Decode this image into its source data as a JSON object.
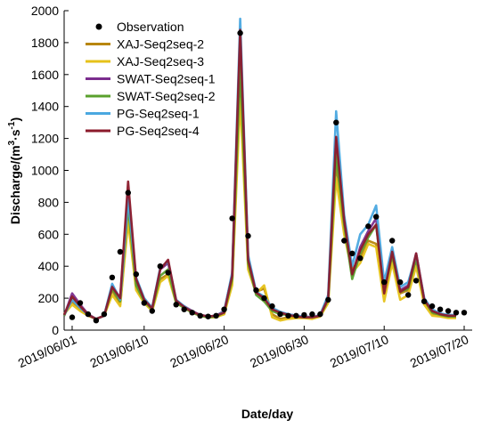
{
  "chart_data": {
    "type": "line",
    "xlabel": "Date/day",
    "ylabel_main": "Discharge/(m",
    "ylabel_sup1": "3",
    "ylabel_mid": "·s",
    "ylabel_sup2": "-1",
    "ylabel_end": ")",
    "xlim": [
      "2019/05/31",
      "2019/07/21"
    ],
    "ylim": [
      0,
      2000
    ],
    "y_ticks": [
      0,
      200,
      400,
      600,
      800,
      1000,
      1200,
      1400,
      1600,
      1800,
      2000
    ],
    "x_ticks": [
      "2019/06/01",
      "2019/06/10",
      "2019/06/20",
      "2019/06/30",
      "2019/07/10",
      "2019/07/20"
    ],
    "legend_position": "top-left",
    "grid": false,
    "observation": {
      "name": "Observation",
      "color": "#000000",
      "x": [
        "2019/06/01",
        "2019/06/02",
        "2019/06/03",
        "2019/06/04",
        "2019/06/05",
        "2019/06/06",
        "2019/06/07",
        "2019/06/08",
        "2019/06/09",
        "2019/06/10",
        "2019/06/11",
        "2019/06/12",
        "2019/06/13",
        "2019/06/14",
        "2019/06/15",
        "2019/06/16",
        "2019/06/17",
        "2019/06/18",
        "2019/06/19",
        "2019/06/20",
        "2019/06/21",
        "2019/06/22",
        "2019/06/23",
        "2019/06/24",
        "2019/06/25",
        "2019/06/26",
        "2019/06/27",
        "2019/06/28",
        "2019/06/29",
        "2019/06/30",
        "2019/07/01",
        "2019/07/02",
        "2019/07/03",
        "2019/07/04",
        "2019/07/05",
        "2019/07/06",
        "2019/07/07",
        "2019/07/08",
        "2019/07/09",
        "2019/07/10",
        "2019/07/11",
        "2019/07/12",
        "2019/07/13",
        "2019/07/14",
        "2019/07/15",
        "2019/07/16",
        "2019/07/17",
        "2019/07/18",
        "2019/07/19",
        "2019/07/20"
      ],
      "y": [
        80,
        170,
        100,
        60,
        100,
        330,
        490,
        860,
        350,
        170,
        120,
        400,
        360,
        160,
        130,
        110,
        90,
        85,
        90,
        130,
        700,
        1860,
        590,
        250,
        200,
        150,
        100,
        90,
        90,
        95,
        100,
        100,
        190,
        1300,
        560,
        480,
        450,
        650,
        710,
        300,
        560,
        300,
        220,
        310,
        180,
        150,
        130,
        120,
        110,
        110
      ]
    },
    "series": [
      {
        "name": "XAJ-Seq2seq-2",
        "color": "#b8860b",
        "values": [
          100,
          180,
          130,
          90,
          70,
          90,
          250,
          160,
          700,
          260,
          180,
          130,
          320,
          350,
          180,
          140,
          110,
          90,
          80,
          85,
          100,
          300,
          1550,
          400,
          240,
          260,
          100,
          70,
          80,
          80,
          80,
          75,
          90,
          180,
          1050,
          630,
          380,
          450,
          560,
          540,
          220,
          450,
          230,
          250,
          440,
          180,
          100,
          90,
          80,
          80
        ]
      },
      {
        "name": "XAJ-Seq2seq-3",
        "color": "#e6c21a",
        "values": [
          100,
          160,
          120,
          90,
          70,
          90,
          220,
          150,
          680,
          250,
          170,
          120,
          300,
          340,
          170,
          140,
          110,
          90,
          80,
          80,
          100,
          280,
          1450,
          380,
          230,
          280,
          80,
          60,
          70,
          75,
          75,
          70,
          85,
          170,
          950,
          600,
          360,
          420,
          540,
          520,
          180,
          420,
          190,
          220,
          400,
          160,
          90,
          85,
          75,
          75
        ]
      },
      {
        "name": "SWAT-Seq2seq-1",
        "color": "#7b2d8e",
        "values": [
          90,
          230,
          160,
          100,
          70,
          90,
          280,
          200,
          850,
          300,
          190,
          140,
          380,
          420,
          180,
          150,
          120,
          95,
          85,
          90,
          120,
          350,
          1850,
          450,
          230,
          200,
          130,
          110,
          100,
          90,
          85,
          80,
          95,
          210,
          1200,
          700,
          340,
          520,
          620,
          700,
          250,
          500,
          250,
          280,
          480,
          200,
          120,
          100,
          90,
          90
        ]
      },
      {
        "name": "SWAT-Seq2seq-2",
        "color": "#5aa02c",
        "values": [
          90,
          200,
          140,
          95,
          70,
          90,
          260,
          180,
          780,
          280,
          180,
          130,
          340,
          380,
          170,
          140,
          110,
          90,
          80,
          85,
          110,
          320,
          1650,
          420,
          220,
          180,
          120,
          100,
          95,
          85,
          80,
          80,
          90,
          190,
          1100,
          660,
          320,
          480,
          580,
          660,
          240,
          470,
          240,
          260,
          450,
          190,
          110,
          95,
          85,
          85
        ]
      },
      {
        "name": "PG-Seq2seq-1",
        "color": "#4aa8e0",
        "values": [
          95,
          190,
          140,
          95,
          70,
          90,
          290,
          190,
          820,
          330,
          200,
          140,
          390,
          430,
          190,
          150,
          115,
          95,
          85,
          90,
          115,
          360,
          1950,
          470,
          240,
          210,
          140,
          115,
          100,
          90,
          85,
          80,
          95,
          220,
          1370,
          720,
          400,
          600,
          660,
          780,
          300,
          520,
          270,
          300,
          470,
          200,
          130,
          105,
          95,
          95
        ]
      },
      {
        "name": "PG-Seq2seq-4",
        "color": "#8b1a2b",
        "values": [
          95,
          210,
          150,
          95,
          70,
          90,
          270,
          200,
          930,
          320,
          190,
          135,
          380,
          440,
          185,
          145,
          115,
          95,
          85,
          90,
          110,
          340,
          1880,
          440,
          235,
          200,
          130,
          110,
          95,
          85,
          80,
          80,
          90,
          200,
          1210,
          690,
          350,
          500,
          600,
          660,
          230,
          490,
          240,
          270,
          480,
          190,
          120,
          100,
          90,
          90
        ]
      }
    ]
  }
}
